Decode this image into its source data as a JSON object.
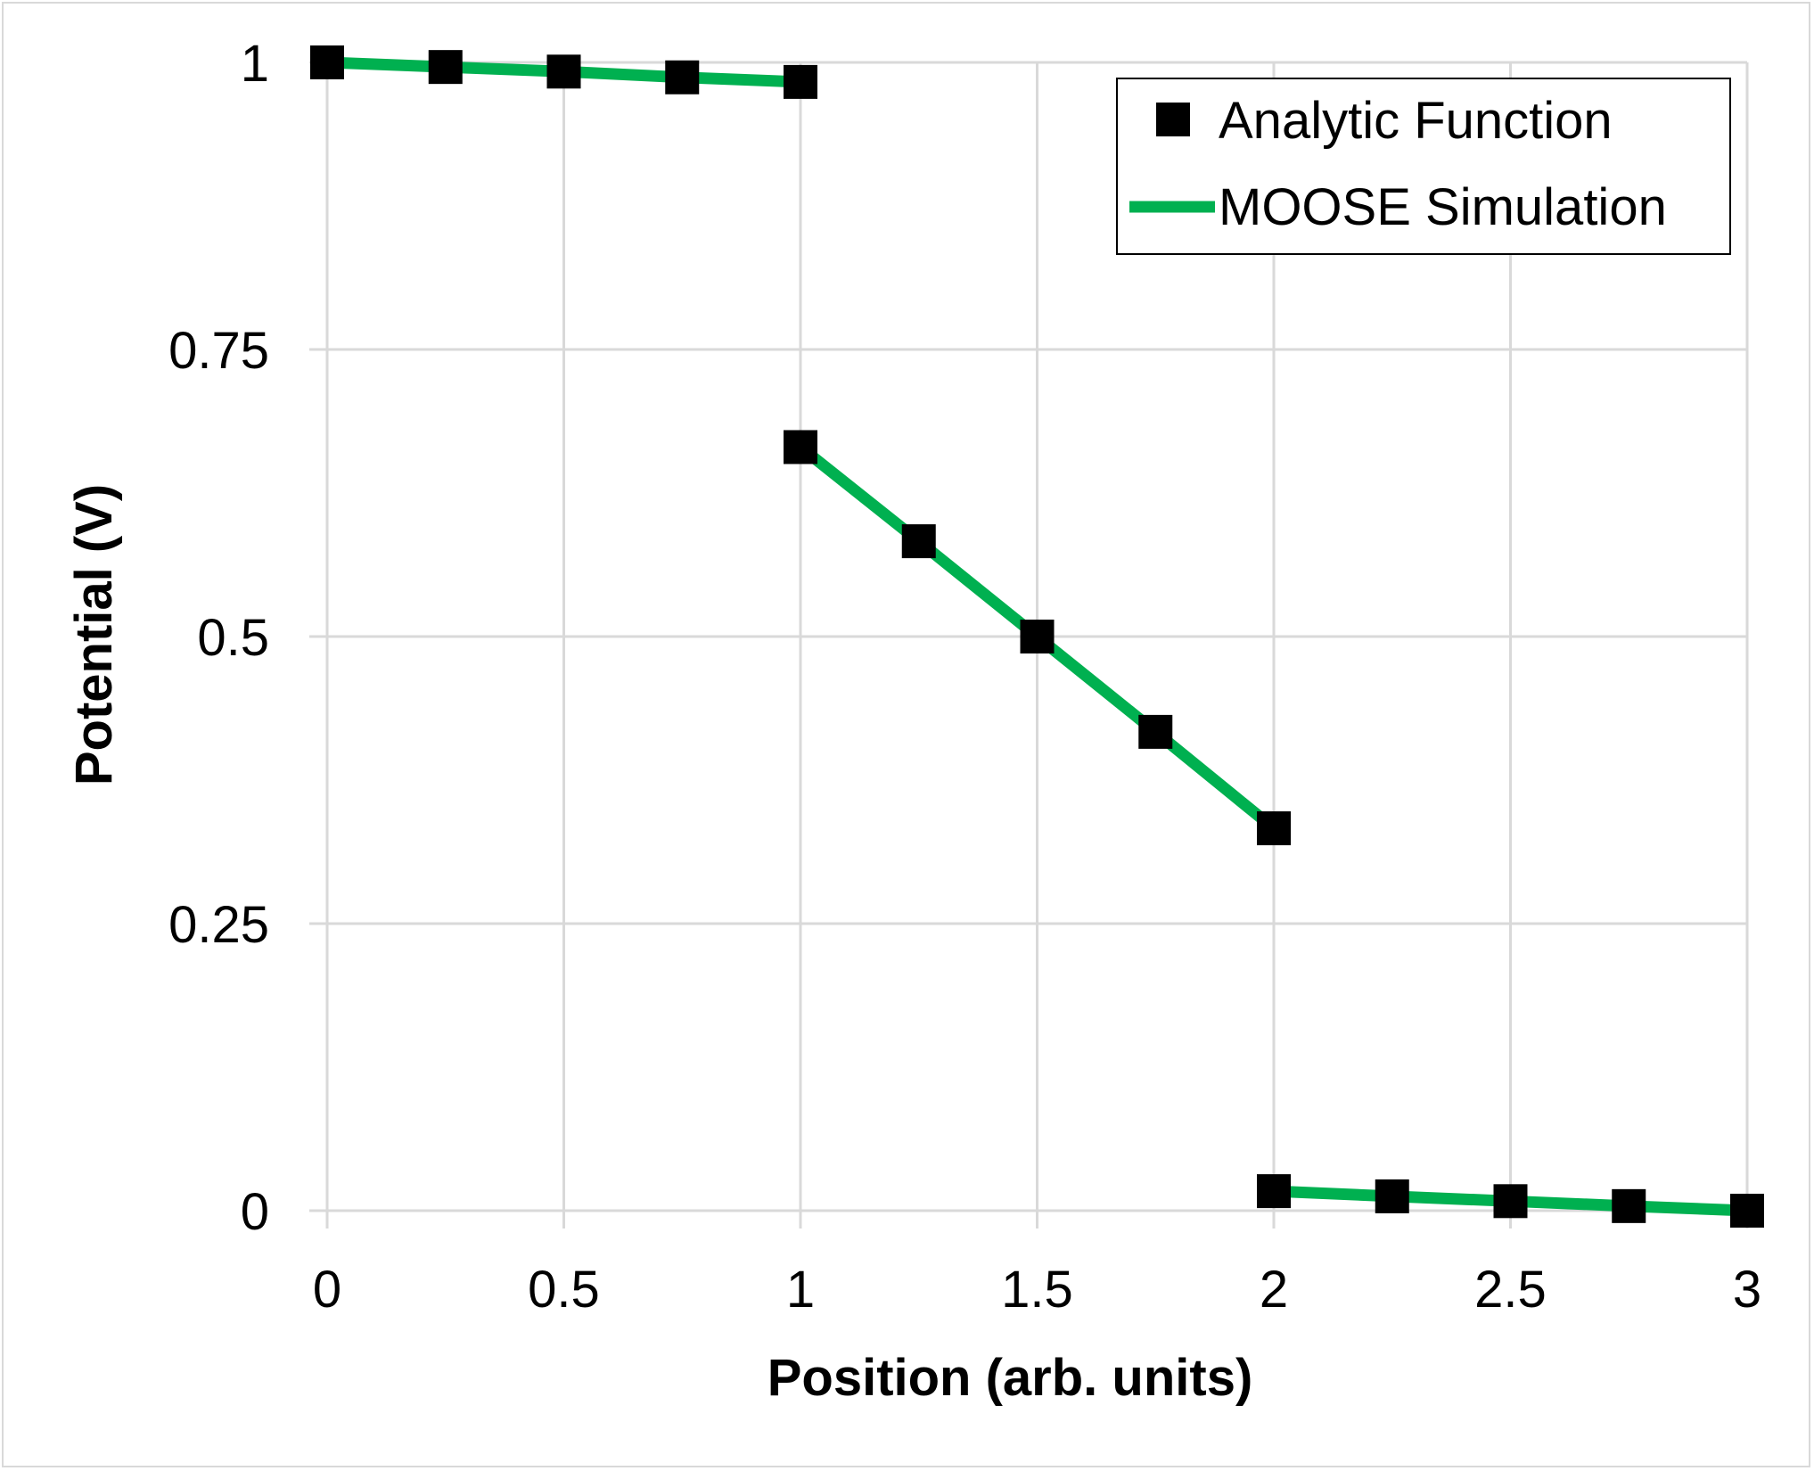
{
  "chart_data": {
    "type": "line",
    "title": "",
    "xlabel": "Position (arb. units)",
    "ylabel": "Potential (V)",
    "xlim": [
      0,
      3
    ],
    "ylim": [
      0,
      1
    ],
    "x_ticks": [
      0,
      0.5,
      1,
      1.5,
      2,
      2.5,
      3
    ],
    "x_tick_labels": [
      "0",
      "0.5",
      "1",
      "1.5",
      "2",
      "2.5",
      "3"
    ],
    "y_ticks": [
      0,
      0.25,
      0.5,
      0.75,
      1
    ],
    "y_tick_labels": [
      "0",
      "0.25",
      "0.5",
      "0.75",
      "1"
    ],
    "grid": true,
    "legend_position": "top-right",
    "series": [
      {
        "name": "Analytic Function",
        "style": "markers",
        "marker": "square",
        "color": "#000000",
        "points": [
          [
            0,
            1.0
          ],
          [
            0.25,
            0.996
          ],
          [
            0.5,
            0.992
          ],
          [
            0.75,
            0.987
          ],
          [
            1,
            0.983
          ],
          [
            1,
            0.665
          ],
          [
            1.25,
            0.583
          ],
          [
            1.5,
            0.5
          ],
          [
            1.75,
            0.417
          ],
          [
            2,
            0.333
          ],
          [
            2,
            0.017
          ],
          [
            2.25,
            0.0125
          ],
          [
            2.5,
            0.0083
          ],
          [
            2.75,
            0.004
          ],
          [
            3,
            0.0
          ]
        ]
      },
      {
        "name": "MOOSE Simulation",
        "style": "line",
        "color": "#00b050",
        "segments": [
          [
            [
              0,
              1.0
            ],
            [
              0.25,
              0.996
            ],
            [
              0.5,
              0.992
            ],
            [
              0.75,
              0.987
            ],
            [
              1,
              0.983
            ]
          ],
          [
            [
              1,
              0.665
            ],
            [
              1.25,
              0.583
            ],
            [
              1.5,
              0.5
            ],
            [
              1.75,
              0.417
            ],
            [
              2,
              0.333
            ]
          ],
          [
            [
              2,
              0.017
            ],
            [
              2.25,
              0.0125
            ],
            [
              2.5,
              0.0083
            ],
            [
              2.75,
              0.004
            ],
            [
              3,
              0.0
            ]
          ]
        ]
      }
    ]
  }
}
